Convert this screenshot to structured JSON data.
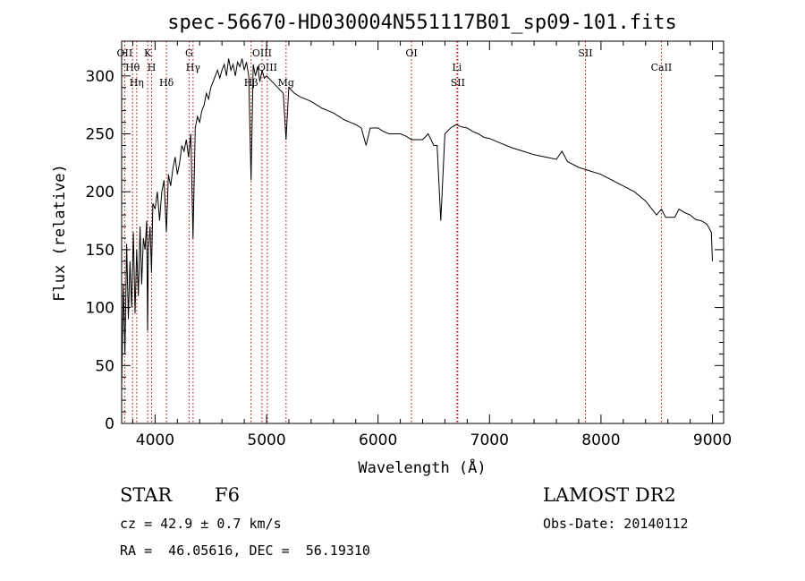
{
  "chart_data": {
    "type": "line",
    "title": "spec-56670-HD030004N551117B01_sp09-101.fits",
    "xlabel": "Wavelength (Å)",
    "ylabel": "Flux (relative)",
    "xlim": [
      3700,
      9100
    ],
    "ylim": [
      0,
      330
    ],
    "xticks": [
      4000,
      5000,
      6000,
      7000,
      8000,
      9000
    ],
    "yticks": [
      0,
      50,
      100,
      150,
      200,
      250,
      300
    ],
    "series": [
      {
        "name": "spectrum",
        "x": [
          3700,
          3715,
          3730,
          3745,
          3760,
          3775,
          3790,
          3805,
          3820,
          3835,
          3850,
          3865,
          3880,
          3895,
          3910,
          3925,
          3933,
          3940,
          3955,
          3968,
          3980,
          4000,
          4020,
          4040,
          4060,
          4080,
          4101,
          4120,
          4140,
          4160,
          4180,
          4200,
          4220,
          4240,
          4260,
          4280,
          4300,
          4320,
          4340,
          4360,
          4380,
          4400,
          4420,
          4440,
          4460,
          4480,
          4500,
          4520,
          4540,
          4560,
          4580,
          4600,
          4620,
          4640,
          4660,
          4680,
          4700,
          4720,
          4740,
          4760,
          4780,
          4800,
          4820,
          4840,
          4861,
          4880,
          4900,
          4920,
          4940,
          4960,
          4980,
          5000,
          5050,
          5100,
          5150,
          5175,
          5200,
          5250,
          5300,
          5350,
          5400,
          5450,
          5500,
          5550,
          5600,
          5650,
          5700,
          5750,
          5800,
          5850,
          5893,
          5930,
          6000,
          6050,
          6100,
          6150,
          6200,
          6250,
          6300,
          6350,
          6400,
          6450,
          6500,
          6530,
          6563,
          6600,
          6650,
          6700,
          6750,
          6800,
          6850,
          6900,
          6950,
          7000,
          7100,
          7200,
          7300,
          7400,
          7500,
          7600,
          7650,
          7700,
          7800,
          7900,
          8000,
          8100,
          8200,
          8300,
          8400,
          8498,
          8542,
          8580,
          8662,
          8700,
          8750,
          8800,
          8850,
          8900,
          8950,
          8990,
          9000
        ],
        "values": [
          30,
          120,
          60,
          155,
          90,
          140,
          100,
          165,
          95,
          150,
          110,
          170,
          120,
          160,
          150,
          175,
          80,
          150,
          170,
          130,
          190,
          185,
          200,
          175,
          200,
          210,
          165,
          215,
          205,
          220,
          230,
          215,
          225,
          240,
          235,
          245,
          230,
          250,
          160,
          255,
          265,
          260,
          270,
          275,
          285,
          280,
          290,
          295,
          300,
          305,
          298,
          305,
          310,
          300,
          315,
          305,
          310,
          300,
          312,
          308,
          315,
          305,
          312,
          300,
          210,
          310,
          300,
          308,
          295,
          305,
          298,
          300,
          295,
          290,
          285,
          245,
          290,
          285,
          282,
          280,
          278,
          275,
          272,
          270,
          268,
          265,
          262,
          260,
          258,
          255,
          240,
          255,
          255,
          252,
          250,
          250,
          250,
          248,
          245,
          245,
          245,
          250,
          240,
          240,
          175,
          250,
          255,
          258,
          256,
          255,
          252,
          250,
          247,
          246,
          242,
          238,
          235,
          232,
          230,
          228,
          235,
          226,
          221,
          218,
          215,
          210,
          205,
          200,
          192,
          180,
          185,
          178,
          178,
          185,
          182,
          180,
          176,
          175,
          172,
          165,
          140
        ]
      }
    ],
    "line_markers": [
      {
        "label": "OII",
        "x": 3727
      },
      {
        "label": "Hθ",
        "x": 3798
      },
      {
        "label": "Hη",
        "x": 3835
      },
      {
        "label": "K",
        "x": 3934
      },
      {
        "label": "H",
        "x": 3969
      },
      {
        "label": "Hδ",
        "x": 4102
      },
      {
        "label": "G",
        "x": 4305
      },
      {
        "label": "Hγ",
        "x": 4341
      },
      {
        "label": "Hβ",
        "x": 4861
      },
      {
        "label": "OIII",
        "x": 4959
      },
      {
        "label": "OIII",
        "x": 5007
      },
      {
        "label": "Mg",
        "x": 5175
      },
      {
        "label": "OI",
        "x": 6300
      },
      {
        "label": "Li",
        "x": 6708
      },
      {
        "label": "SII",
        "x": 6716
      },
      {
        "label": "SII",
        "x": 7860
      },
      {
        "label": "CaII",
        "x": 8542
      }
    ]
  },
  "info": {
    "object_type": "STAR",
    "subclass": "F6",
    "survey": "LAMOST DR2",
    "cz": "cz = 42.9 ± 0.7 km/s",
    "obs_date": "Obs-Date: 20140112",
    "coords": "RA =  46.05616, DEC =  56.19310"
  },
  "colors": {
    "line": "#000000",
    "marker": "#b00000",
    "background": "#ffffff"
  }
}
